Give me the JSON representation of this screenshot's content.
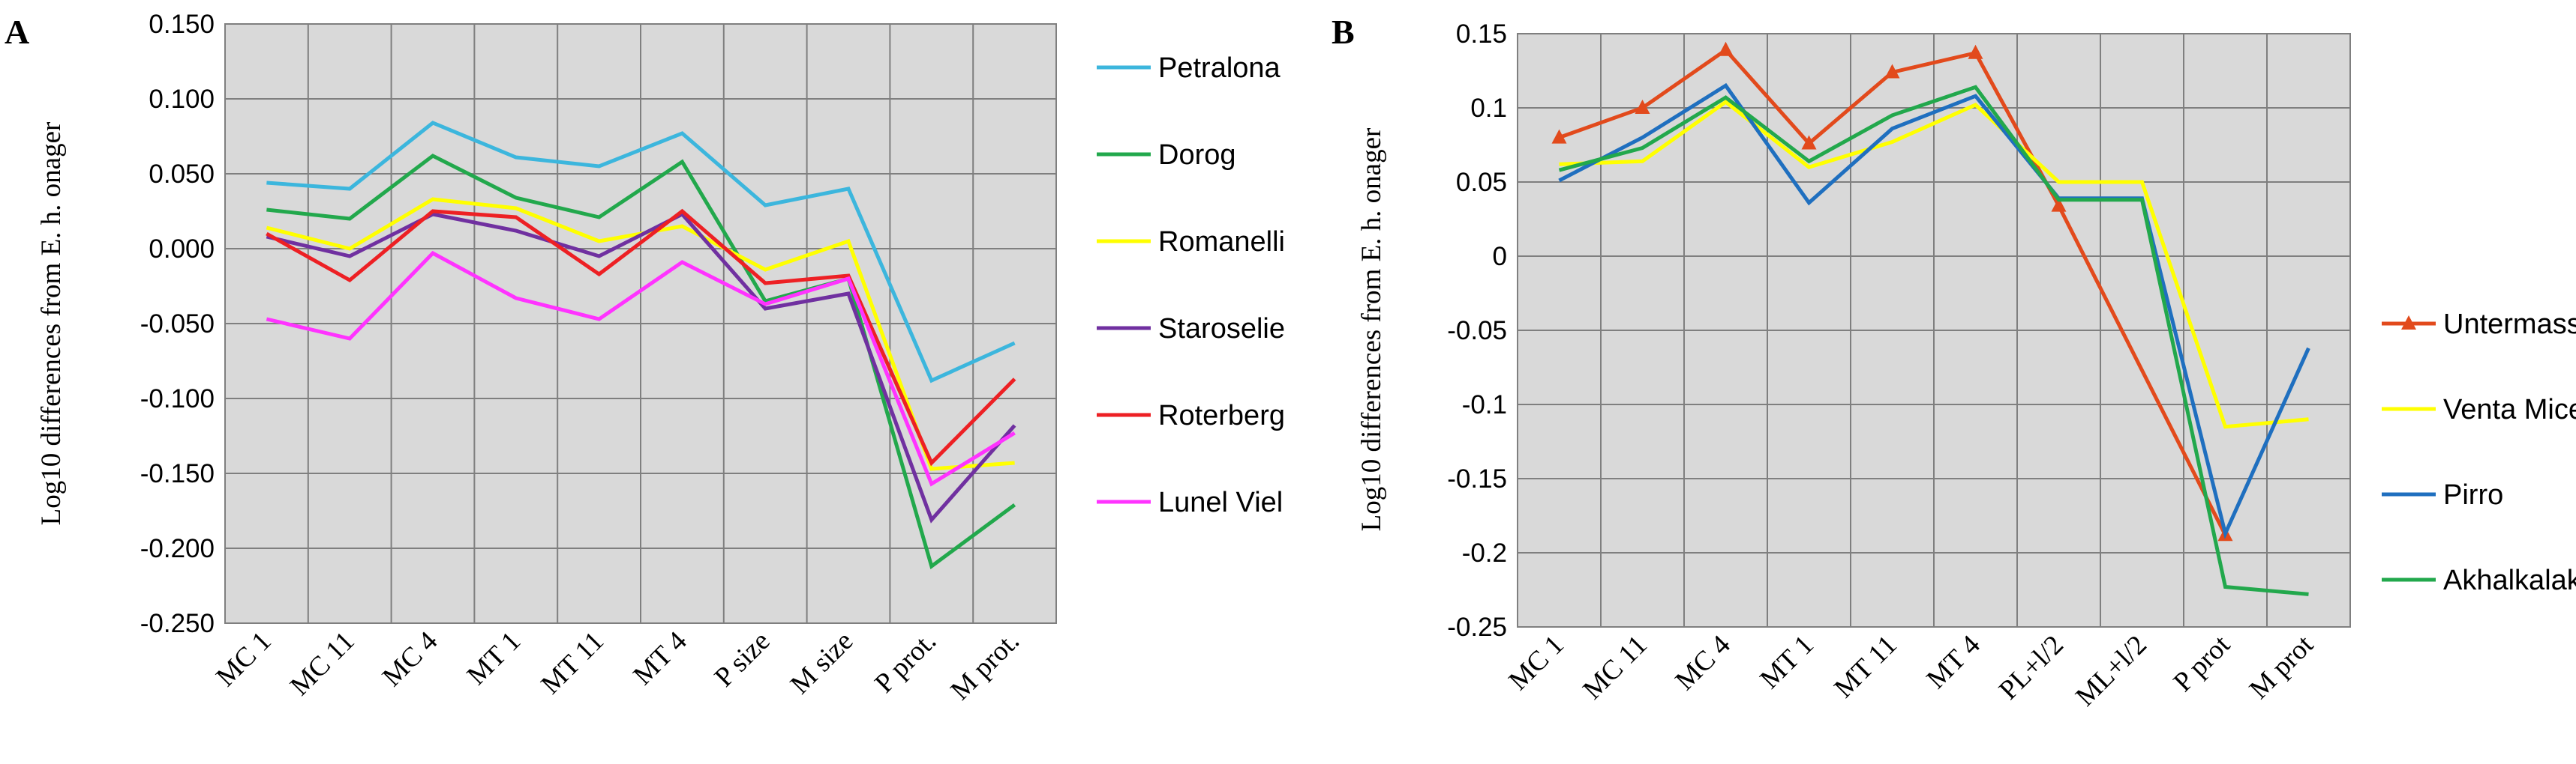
{
  "chart_data": [
    {
      "panel": "A",
      "type": "line",
      "ylabel": "Log10 differences from E. h. onager",
      "ylim": [
        -0.25,
        0.15
      ],
      "yticks": [
        "0.150",
        "0.100",
        "0.050",
        "0.000",
        "-0.050",
        "-0.100",
        "-0.150",
        "-0.200",
        "-0.250"
      ],
      "ytick_values": [
        0.15,
        0.1,
        0.05,
        0.0,
        -0.05,
        -0.1,
        -0.15,
        -0.2,
        -0.25
      ],
      "grid": true,
      "legend_position": "right",
      "categories": [
        "MC 1",
        "MC 11",
        "MC 4",
        "MT 1",
        "MT 11",
        "MT 4",
        "P size",
        "M size",
        "P prot.",
        "M prot."
      ],
      "series": [
        {
          "name": "Petralona",
          "color": "#3cb6dd",
          "marker": "none",
          "values": [
            0.044,
            0.04,
            0.084,
            0.061,
            0.055,
            0.077,
            0.029,
            0.04,
            -0.088,
            -0.063
          ]
        },
        {
          "name": "Dorog",
          "color": "#22a84c",
          "marker": "none",
          "values": [
            0.026,
            0.02,
            0.062,
            0.034,
            0.021,
            0.058,
            -0.035,
            -0.02,
            -0.212,
            -0.171
          ]
        },
        {
          "name": "Romanelli",
          "color": "#ffff00",
          "marker": "none",
          "values": [
            0.014,
            0.0,
            0.033,
            0.027,
            0.005,
            0.015,
            -0.014,
            0.005,
            -0.147,
            -0.143
          ]
        },
        {
          "name": "Staroselie",
          "color": "#7030a0",
          "marker": "none",
          "values": [
            0.008,
            -0.005,
            0.023,
            0.012,
            -0.005,
            0.023,
            -0.04,
            -0.03,
            -0.181,
            -0.118
          ]
        },
        {
          "name": "Roterberg",
          "color": "#ed2024",
          "marker": "none",
          "values": [
            0.01,
            -0.021,
            0.025,
            0.021,
            -0.017,
            0.025,
            -0.023,
            -0.018,
            -0.143,
            -0.087
          ]
        },
        {
          "name": "Lunel Viel",
          "color": "#ff33ff",
          "marker": "none",
          "values": [
            -0.047,
            -0.06,
            -0.003,
            -0.033,
            -0.047,
            -0.009,
            -0.037,
            -0.02,
            -0.157,
            -0.123
          ]
        }
      ]
    },
    {
      "panel": "B",
      "type": "line",
      "ylabel": "Log10 differences from E. h. onager",
      "ylim": [
        -0.25,
        0.15
      ],
      "yticks": [
        "0.15",
        "0.1",
        "0.05",
        "0",
        "-0.05",
        "-0.1",
        "-0.15",
        "-0.2",
        "-0.25"
      ],
      "ytick_values": [
        0.15,
        0.1,
        0.05,
        0.0,
        -0.05,
        -0.1,
        -0.15,
        -0.2,
        -0.25
      ],
      "grid": true,
      "legend_position": "right",
      "categories": [
        "MC 1",
        "MC 11",
        "MC 4",
        "MT 1",
        "MT 11",
        "MT 4",
        "PL+l/2",
        "ML+l/2",
        "P prot",
        "M prot"
      ],
      "series": [
        {
          "name": "Untermassfeld",
          "color": "#e24a1c",
          "marker": "triangle",
          "values": [
            0.08,
            0.1,
            0.139,
            0.076,
            0.124,
            0.137,
            0.034,
            null,
            -0.188,
            null
          ]
        },
        {
          "name": "Venta Micena",
          "color": "#ffff00",
          "marker": "none",
          "values": [
            0.062,
            0.064,
            0.104,
            0.06,
            0.077,
            0.102,
            0.05,
            0.05,
            -0.115,
            -0.11
          ]
        },
        {
          "name": "Pirro",
          "color": "#1f6fbf",
          "marker": "none",
          "values": [
            0.051,
            0.08,
            0.115,
            0.036,
            0.086,
            0.108,
            0.039,
            0.039,
            -0.187,
            -0.062
          ]
        },
        {
          "name": "Akhalkalaki",
          "color": "#22a84c",
          "marker": "none",
          "values": [
            0.058,
            0.073,
            0.107,
            0.064,
            0.095,
            0.114,
            0.038,
            0.038,
            -0.223,
            -0.228
          ]
        }
      ]
    }
  ]
}
